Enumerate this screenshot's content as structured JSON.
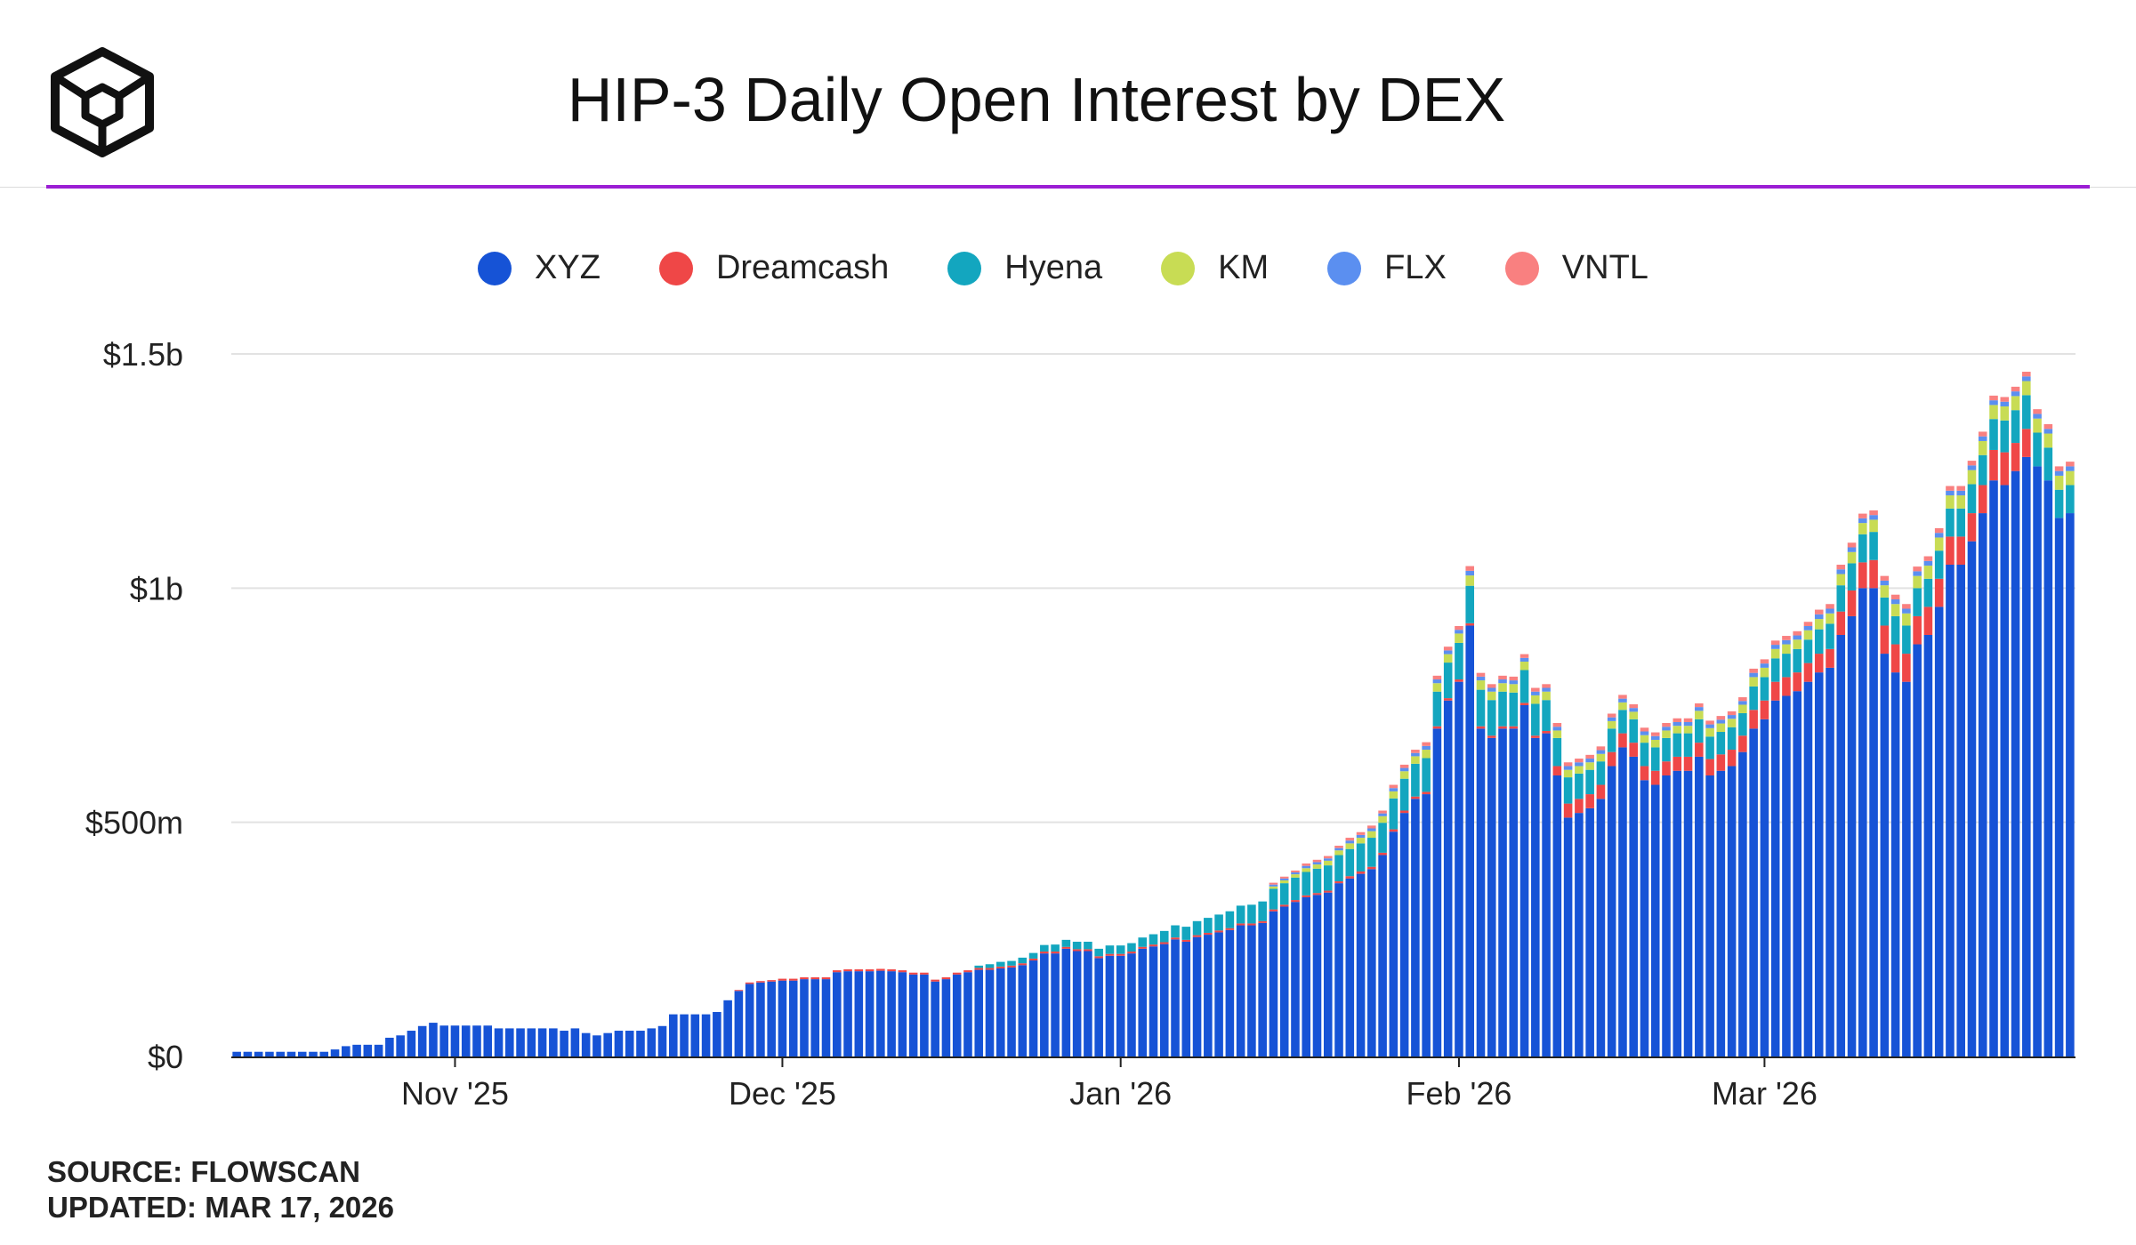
{
  "page": {
    "title": "HIP-3 Daily Open Interest by DEX",
    "source": "SOURCE: FLOWSCAN",
    "updated": "UPDATED: MAR 17, 2026"
  },
  "colors": {
    "accent": "#9b1ed4",
    "grid": "#e2e2e2",
    "axis": "#222222"
  },
  "chart_data": {
    "type": "bar",
    "stacked": true,
    "title": "HIP-3 Daily Open Interest by DEX",
    "xlabel": "",
    "ylabel": "",
    "unit": "USD millions",
    "ylim": [
      0,
      1500
    ],
    "yticks": [
      {
        "value": 0,
        "label": "$0"
      },
      {
        "value": 500,
        "label": "$500m"
      },
      {
        "value": 1000,
        "label": "$1b"
      },
      {
        "value": 1500,
        "label": "$1.5b"
      }
    ],
    "xticks": [
      {
        "index": 20,
        "label": "Nov '25"
      },
      {
        "index": 50,
        "label": "Dec '25"
      },
      {
        "index": 81,
        "label": "Jan '26"
      },
      {
        "index": 112,
        "label": "Feb '26"
      },
      {
        "index": 140,
        "label": "Mar '26"
      }
    ],
    "legend_position": "top-center",
    "series": [
      {
        "name": "XYZ",
        "color": "#1653d6",
        "values": [
          10,
          10,
          10,
          10,
          10,
          10,
          10,
          10,
          10,
          15,
          22,
          25,
          25,
          25,
          40,
          45,
          55,
          65,
          72,
          66,
          66,
          66,
          66,
          66,
          60,
          60,
          60,
          60,
          60,
          60,
          55,
          60,
          50,
          45,
          50,
          55,
          55,
          55,
          60,
          65,
          90,
          90,
          90,
          90,
          95,
          120,
          140,
          155,
          158,
          160,
          162,
          162,
          165,
          165,
          165,
          180,
          182,
          182,
          182,
          183,
          182,
          180,
          175,
          175,
          160,
          165,
          175,
          180,
          185,
          185,
          188,
          190,
          195,
          205,
          220,
          220,
          230,
          225,
          225,
          210,
          215,
          215,
          220,
          230,
          235,
          240,
          250,
          245,
          255,
          260,
          265,
          270,
          280,
          280,
          285,
          310,
          320,
          330,
          340,
          345,
          350,
          370,
          380,
          390,
          400,
          430,
          480,
          520,
          550,
          560,
          700,
          760,
          800,
          920,
          700,
          680,
          700,
          700,
          750,
          680,
          690,
          600,
          510,
          520,
          530,
          550,
          620,
          660,
          640,
          590,
          580,
          600,
          610,
          610,
          640,
          600,
          610,
          620,
          650,
          700,
          720,
          760,
          770,
          780,
          800,
          820,
          830,
          900,
          940,
          1000,
          1000,
          860,
          820,
          800,
          880,
          900,
          960,
          1050,
          1050,
          1100,
          1160,
          1230,
          1220,
          1250,
          1280,
          1260,
          1230,
          1150,
          1160
        ]
      },
      {
        "name": "Dreamcash",
        "color": "#ef4747",
        "values": [
          0,
          0,
          0,
          0,
          0,
          0,
          0,
          0,
          0,
          0,
          0,
          0,
          0,
          0,
          0,
          0,
          0,
          0,
          0,
          0,
          0,
          0,
          0,
          0,
          0,
          0,
          0,
          0,
          0,
          0,
          0,
          0,
          0,
          0,
          0,
          0,
          0,
          0,
          0,
          0,
          0,
          0,
          0,
          0,
          0,
          0,
          2,
          3,
          3,
          3,
          4,
          4,
          4,
          4,
          4,
          4,
          4,
          4,
          4,
          4,
          4,
          4,
          4,
          4,
          4,
          4,
          4,
          4,
          4,
          4,
          4,
          4,
          4,
          4,
          4,
          4,
          4,
          4,
          4,
          4,
          4,
          4,
          4,
          4,
          4,
          4,
          4,
          4,
          4,
          4,
          4,
          4,
          4,
          4,
          4,
          4,
          4,
          4,
          4,
          4,
          4,
          4,
          5,
          5,
          5,
          5,
          5,
          5,
          5,
          5,
          5,
          5,
          5,
          5,
          5,
          5,
          5,
          5,
          5,
          5,
          5,
          20,
          30,
          30,
          30,
          30,
          30,
          30,
          30,
          30,
          30,
          30,
          30,
          30,
          30,
          35,
          35,
          35,
          35,
          40,
          40,
          40,
          40,
          40,
          40,
          40,
          40,
          50,
          55,
          55,
          60,
          60,
          60,
          60,
          60,
          60,
          60,
          60,
          60,
          60,
          60,
          65,
          70,
          60,
          60
        ]
      },
      {
        "name": "Hyena",
        "color": "#13a6bf",
        "values": [
          0,
          0,
          0,
          0,
          0,
          0,
          0,
          0,
          0,
          0,
          0,
          0,
          0,
          0,
          0,
          0,
          0,
          0,
          0,
          0,
          0,
          0,
          0,
          0,
          0,
          0,
          0,
          0,
          0,
          0,
          0,
          0,
          0,
          0,
          0,
          0,
          0,
          0,
          0,
          0,
          0,
          0,
          0,
          0,
          0,
          0,
          0,
          0,
          0,
          0,
          0,
          0,
          0,
          0,
          0,
          0,
          0,
          0,
          0,
          0,
          0,
          0,
          0,
          0,
          0,
          0,
          0,
          0,
          5,
          8,
          10,
          10,
          12,
          12,
          14,
          15,
          15,
          16,
          16,
          16,
          18,
          18,
          18,
          20,
          22,
          24,
          26,
          28,
          30,
          32,
          34,
          36,
          38,
          40,
          42,
          44,
          46,
          48,
          50,
          52,
          54,
          56,
          58,
          60,
          62,
          64,
          66,
          68,
          70,
          72,
          74,
          76,
          78,
          80,
          78,
          76,
          74,
          72,
          70,
          68,
          66,
          60,
          56,
          54,
          52,
          50,
          50,
          50,
          50,
          50,
          50,
          50,
          50,
          50,
          50,
          48,
          48,
          48,
          48,
          50,
          50,
          50,
          50,
          50,
          50,
          52,
          54,
          56,
          58,
          60,
          60,
          60,
          60,
          60,
          60,
          60,
          60,
          60,
          60,
          62,
          64,
          66,
          68,
          70,
          72,
          72,
          70,
          60,
          60
        ]
      },
      {
        "name": "KM",
        "color": "#c8dc54",
        "values": [
          0,
          0,
          0,
          0,
          0,
          0,
          0,
          0,
          0,
          0,
          0,
          0,
          0,
          0,
          0,
          0,
          0,
          0,
          0,
          0,
          0,
          0,
          0,
          0,
          0,
          0,
          0,
          0,
          0,
          0,
          0,
          0,
          0,
          0,
          0,
          0,
          0,
          0,
          0,
          0,
          0,
          0,
          0,
          0,
          0,
          0,
          0,
          0,
          0,
          0,
          0,
          0,
          0,
          0,
          0,
          0,
          0,
          0,
          0,
          0,
          0,
          0,
          0,
          0,
          0,
          0,
          0,
          0,
          0,
          0,
          0,
          0,
          0,
          0,
          0,
          0,
          0,
          0,
          0,
          0,
          0,
          0,
          0,
          0,
          0,
          0,
          0,
          0,
          0,
          0,
          0,
          0,
          0,
          0,
          0,
          5,
          6,
          7,
          8,
          9,
          10,
          10,
          12,
          12,
          14,
          14,
          15,
          16,
          16,
          18,
          18,
          18,
          20,
          22,
          20,
          18,
          18,
          18,
          18,
          18,
          18,
          16,
          16,
          16,
          16,
          16,
          16,
          16,
          16,
          16,
          16,
          16,
          16,
          16,
          18,
          18,
          18,
          18,
          18,
          20,
          20,
          20,
          20,
          20,
          20,
          22,
          22,
          24,
          24,
          24,
          26,
          26,
          26,
          26,
          26,
          28,
          28,
          28,
          28,
          30,
          30,
          30,
          30,
          30,
          30,
          30,
          30,
          30,
          30
        ]
      },
      {
        "name": "FLX",
        "color": "#5b8ff0",
        "values": [
          0,
          0,
          0,
          0,
          0,
          0,
          0,
          0,
          0,
          0,
          0,
          0,
          0,
          0,
          0,
          0,
          0,
          0,
          0,
          0,
          0,
          0,
          0,
          0,
          0,
          0,
          0,
          0,
          0,
          0,
          0,
          0,
          0,
          0,
          0,
          0,
          0,
          0,
          0,
          0,
          0,
          0,
          0,
          0,
          0,
          0,
          0,
          0,
          0,
          0,
          0,
          0,
          0,
          0,
          0,
          0,
          0,
          0,
          0,
          0,
          0,
          0,
          0,
          0,
          0,
          0,
          0,
          0,
          0,
          0,
          0,
          0,
          0,
          0,
          0,
          0,
          0,
          0,
          0,
          0,
          0,
          0,
          0,
          0,
          0,
          0,
          0,
          0,
          0,
          0,
          0,
          0,
          0,
          0,
          0,
          4,
          4,
          4,
          5,
          5,
          5,
          5,
          6,
          6,
          6,
          6,
          7,
          7,
          7,
          8,
          8,
          8,
          8,
          10,
          8,
          8,
          8,
          8,
          8,
          8,
          8,
          8,
          8,
          8,
          8,
          8,
          8,
          8,
          8,
          8,
          8,
          8,
          8,
          8,
          8,
          8,
          8,
          8,
          8,
          9,
          9,
          9,
          9,
          9,
          9,
          10,
          10,
          10,
          10,
          10,
          10,
          10,
          10,
          10,
          10,
          10,
          10,
          10,
          10,
          10,
          10,
          10,
          10,
          10,
          10,
          10,
          10,
          10,
          10
        ]
      },
      {
        "name": "VNTL",
        "color": "#f98080",
        "values": [
          0,
          0,
          0,
          0,
          0,
          0,
          0,
          0,
          0,
          0,
          0,
          0,
          0,
          0,
          0,
          0,
          0,
          0,
          0,
          0,
          0,
          0,
          0,
          0,
          0,
          0,
          0,
          0,
          0,
          0,
          0,
          0,
          0,
          0,
          0,
          0,
          0,
          0,
          0,
          0,
          0,
          0,
          0,
          0,
          0,
          0,
          0,
          0,
          0,
          0,
          0,
          0,
          0,
          0,
          0,
          0,
          0,
          0,
          0,
          0,
          0,
          0,
          0,
          0,
          0,
          0,
          0,
          0,
          0,
          0,
          0,
          0,
          0,
          0,
          0,
          0,
          0,
          0,
          0,
          0,
          0,
          0,
          0,
          0,
          0,
          0,
          0,
          0,
          0,
          0,
          0,
          0,
          0,
          0,
          0,
          4,
          4,
          4,
          5,
          5,
          5,
          5,
          6,
          6,
          6,
          6,
          7,
          7,
          7,
          8,
          8,
          8,
          8,
          10,
          8,
          8,
          8,
          8,
          8,
          8,
          8,
          8,
          8,
          8,
          8,
          8,
          8,
          8,
          8,
          8,
          8,
          8,
          8,
          8,
          8,
          8,
          8,
          8,
          8,
          9,
          9,
          9,
          9,
          9,
          9,
          10,
          10,
          10,
          10,
          10,
          10,
          10,
          10,
          10,
          10,
          10,
          10,
          10,
          10,
          10,
          10,
          10,
          10,
          10,
          10,
          10,
          10,
          10,
          10
        ]
      }
    ]
  }
}
